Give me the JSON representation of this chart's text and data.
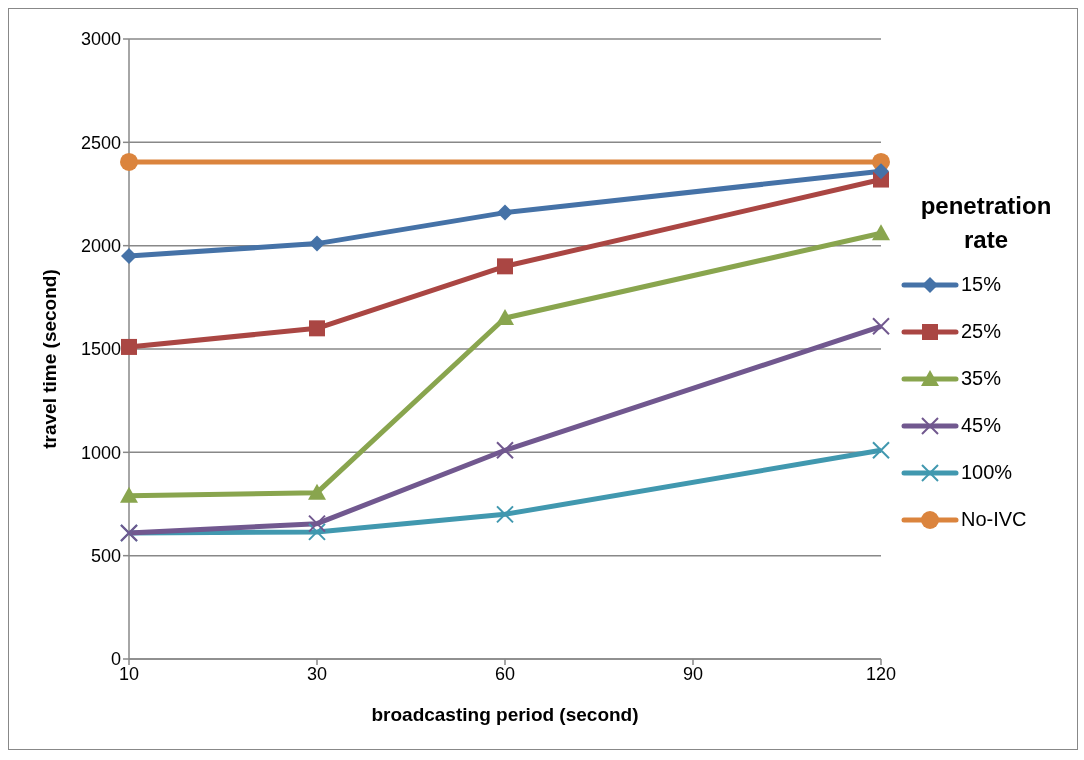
{
  "chart_data": {
    "type": "line",
    "xlabel": "broadcasting period (second)",
    "ylabel": "travel time (second)",
    "legend_title": "penetration rate",
    "categories": [
      "10",
      "30",
      "60",
      "90",
      "120"
    ],
    "ylim": [
      0,
      3000
    ],
    "yticks": [
      0,
      500,
      1000,
      1500,
      2000,
      2500,
      3000
    ],
    "grid": "y",
    "legend": "right",
    "series": [
      {
        "name": "15%",
        "color": "#4572a7",
        "marker": "diamond",
        "values": [
          1950,
          2010,
          2160,
          null,
          2360
        ]
      },
      {
        "name": "25%",
        "color": "#aa4643",
        "marker": "square",
        "values": [
          1510,
          1600,
          1900,
          null,
          2320
        ]
      },
      {
        "name": "35%",
        "color": "#89a54e",
        "marker": "triangle",
        "values": [
          790,
          805,
          1650,
          null,
          2060
        ]
      },
      {
        "name": "45%",
        "color": "#71588f",
        "marker": "cross",
        "values": [
          610,
          655,
          1010,
          null,
          1610
        ]
      },
      {
        "name": "100%",
        "color": "#4198af",
        "marker": "cross",
        "values": [
          610,
          615,
          700,
          null,
          1010
        ]
      },
      {
        "name": "No-IVC",
        "color": "#db843d",
        "marker": "circle",
        "values": [
          2405,
          null,
          null,
          null,
          2405
        ]
      }
    ]
  }
}
